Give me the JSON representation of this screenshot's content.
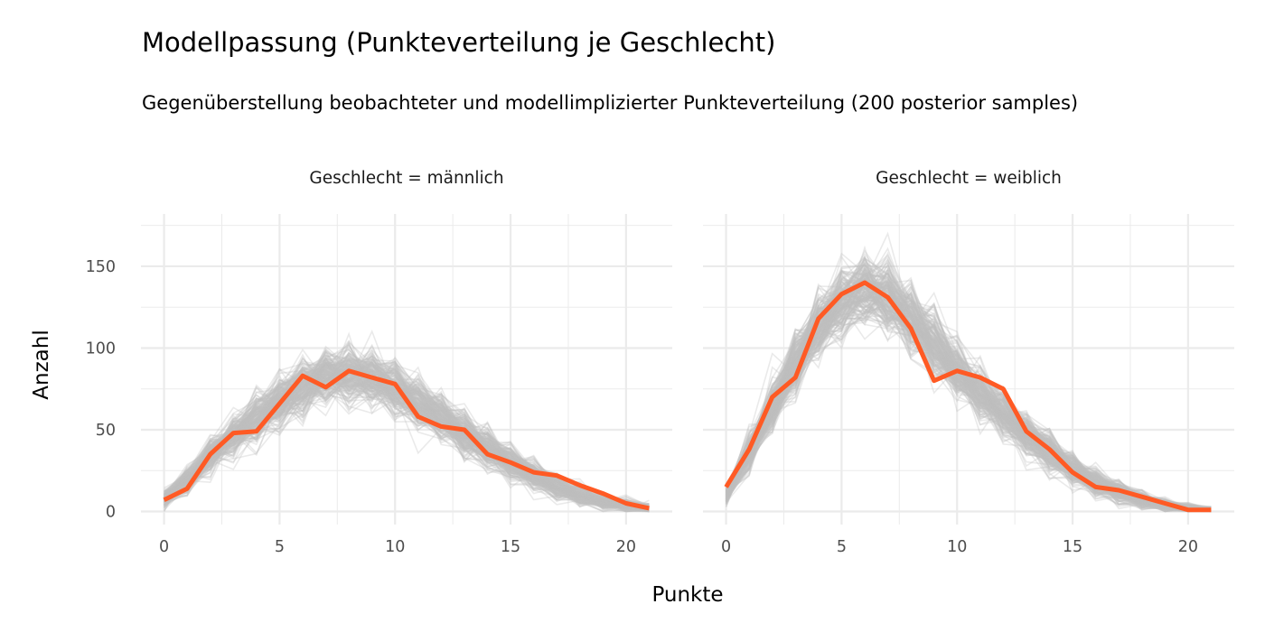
{
  "chart_data": {
    "type": "line",
    "title": "Modellpassung (Punkteverteilung je Geschlecht)",
    "subtitle": "Gegenüberstellung beobachteter und modellimplizierter Punkteverteilung (200 posterior samples)",
    "xlabel": "Punkte",
    "ylabel": "Anzahl",
    "xlim": [
      -1,
      22
    ],
    "ylim": [
      -8,
      182
    ],
    "x_ticks": [
      0,
      5,
      10,
      15,
      20
    ],
    "y_ticks": [
      0,
      50,
      100,
      150
    ],
    "grid": true,
    "colors": {
      "observed": "#FF5A24",
      "posterior": "#BEBEBE",
      "grid": "#EBEBEB"
    },
    "panels": [
      {
        "label": "Geschlecht = männlich",
        "series": [
          {
            "role": "observed",
            "x": [
              0,
              1,
              2,
              3,
              4,
              5,
              6,
              7,
              8,
              9,
              10,
              11,
              12,
              13,
              14,
              15,
              16,
              17,
              18,
              19,
              20,
              21
            ],
            "values": [
              7,
              14,
              35,
              48,
              49,
              66,
              83,
              76,
              86,
              82,
              78,
              58,
              52,
              50,
              35,
              30,
              24,
              22,
              16,
              11,
              5,
              2
            ]
          },
          {
            "role": "posterior",
            "x": [
              0,
              1,
              2,
              3,
              4,
              5,
              6,
              7,
              8,
              9,
              10,
              11,
              12,
              13,
              14,
              15,
              16,
              17,
              18,
              19,
              20,
              21
            ],
            "values": [
              8,
              19,
              34,
              46,
              56,
              67,
              76,
              82,
              84,
              82,
              76,
              67,
              57,
              47,
              38,
              30,
              22,
              15,
              10,
              6,
              4,
              2
            ]
          }
        ]
      },
      {
        "label": "Geschlecht = weiblich",
        "series": [
          {
            "role": "observed",
            "x": [
              0,
              1,
              2,
              3,
              4,
              5,
              6,
              7,
              8,
              9,
              10,
              11,
              12,
              13,
              14,
              15,
              16,
              17,
              18,
              19,
              20,
              21
            ],
            "values": [
              15,
              38,
              70,
              82,
              118,
              133,
              140,
              131,
              112,
              80,
              86,
              82,
              75,
              49,
              38,
              24,
              15,
              13,
              9,
              5,
              1,
              1
            ]
          },
          {
            "role": "posterior",
            "x": [
              0,
              1,
              2,
              3,
              4,
              5,
              6,
              7,
              8,
              9,
              10,
              11,
              12,
              13,
              14,
              15,
              16,
              17,
              18,
              19,
              20,
              21
            ],
            "values": [
              10,
              36,
              64,
              92,
              113,
              128,
              136,
              131,
              118,
              102,
              86,
              72,
              60,
              47,
              36,
              26,
              18,
              12,
              7,
              4,
              2,
              1
            ]
          }
        ]
      }
    ]
  }
}
